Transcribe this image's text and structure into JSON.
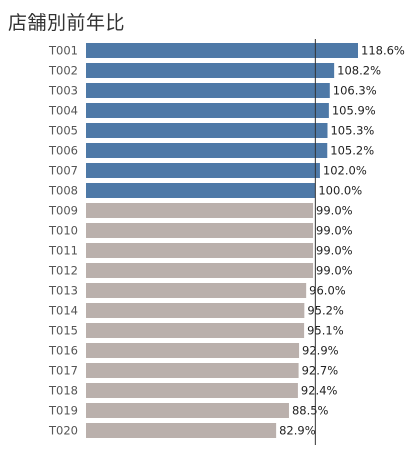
{
  "chart_data": {
    "type": "bar",
    "orientation": "horizontal",
    "title": "店舗別前年比",
    "categories": [
      "T001",
      "T002",
      "T003",
      "T004",
      "T005",
      "T006",
      "T007",
      "T008",
      "T009",
      "T010",
      "T011",
      "T012",
      "T013",
      "T014",
      "T015",
      "T016",
      "T017",
      "T018",
      "T019",
      "T020"
    ],
    "values": [
      118.6,
      108.2,
      106.3,
      105.9,
      105.3,
      105.2,
      102.0,
      100.0,
      99.0,
      99.0,
      99.0,
      99.0,
      96.0,
      95.2,
      95.1,
      92.9,
      92.7,
      92.4,
      88.5,
      82.9
    ],
    "value_labels": [
      "118.6%",
      "108.2%",
      "106.3%",
      "105.9%",
      "105.3%",
      "105.2%",
      "102.0%",
      "100.0%",
      "99.0%",
      "99.0%",
      "99.0%",
      "99.0%",
      "96.0%",
      "95.2%",
      "95.1%",
      "92.9%",
      "92.7%",
      "92.4%",
      "88.5%",
      "82.9%"
    ],
    "reference_line": 100,
    "xlim": [
      0,
      118.6
    ],
    "colors": {
      "above_or_equal_100": "#4e79a7",
      "below_100": "#bab0ac",
      "reference_line": "#333333"
    }
  }
}
